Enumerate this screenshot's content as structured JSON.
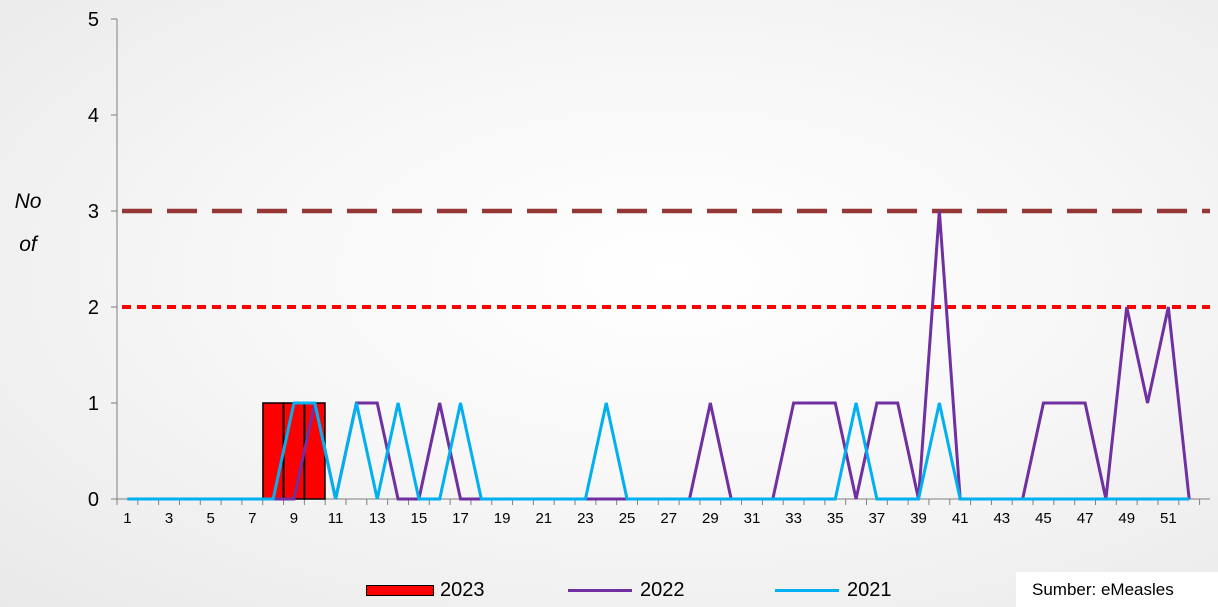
{
  "chart_data": {
    "type": "bar",
    "ylabel_lines": [
      "No",
      "of"
    ],
    "ylim": [
      0,
      5
    ],
    "yticks": [
      0,
      1,
      2,
      3,
      4,
      5
    ],
    "x": [
      1,
      2,
      3,
      4,
      5,
      6,
      7,
      8,
      9,
      10,
      11,
      12,
      13,
      14,
      15,
      16,
      17,
      18,
      19,
      20,
      21,
      22,
      23,
      24,
      25,
      26,
      27,
      28,
      29,
      30,
      31,
      32,
      33,
      34,
      35,
      36,
      37,
      38,
      39,
      40,
      41,
      42,
      43,
      44,
      45,
      46,
      47,
      48,
      49,
      50,
      51,
      52
    ],
    "xtick_labels": [
      "1",
      "3",
      "5",
      "7",
      "9",
      "11",
      "13",
      "15",
      "17",
      "19",
      "21",
      "23",
      "25",
      "27",
      "29",
      "31",
      "33",
      "35",
      "37",
      "39",
      "41",
      "43",
      "45",
      "47",
      "49",
      "51"
    ],
    "bars": {
      "name": "2023",
      "color": "#ff0000",
      "values": [
        0,
        0,
        0,
        0,
        0,
        0,
        0,
        1,
        1,
        1
      ]
    },
    "series": [
      {
        "name": "2022",
        "color": "#7030a0",
        "values": [
          0,
          0,
          0,
          0,
          0,
          0,
          0,
          0,
          0,
          1,
          0,
          1,
          1,
          0,
          0,
          1,
          0,
          0,
          0,
          0,
          0,
          0,
          0,
          0,
          0,
          0,
          0,
          0,
          1,
          0,
          0,
          0,
          1,
          1,
          1,
          0,
          1,
          1,
          0,
          3,
          0,
          0,
          0,
          0,
          1,
          1,
          1,
          0,
          2,
          1,
          2,
          0
        ]
      },
      {
        "name": "2021",
        "color": "#00b0f0",
        "values": [
          0,
          0,
          0,
          0,
          0,
          0,
          0,
          0,
          1,
          1,
          0,
          1,
          0,
          1,
          0,
          0,
          1,
          0,
          0,
          0,
          0,
          0,
          0,
          1,
          0,
          0,
          0,
          0,
          0,
          0,
          0,
          0,
          0,
          0,
          0,
          1,
          0,
          0,
          0,
          1,
          0,
          0,
          0,
          0,
          0,
          0,
          0,
          0,
          0,
          0,
          0,
          0
        ]
      }
    ],
    "threshold_lines": [
      {
        "value": 3,
        "color": "#953735",
        "style": "long-dash"
      },
      {
        "value": 2,
        "color": "#ff0000",
        "style": "short-dash"
      }
    ],
    "grid": false
  },
  "source_note": "Sumber: eMeasles"
}
